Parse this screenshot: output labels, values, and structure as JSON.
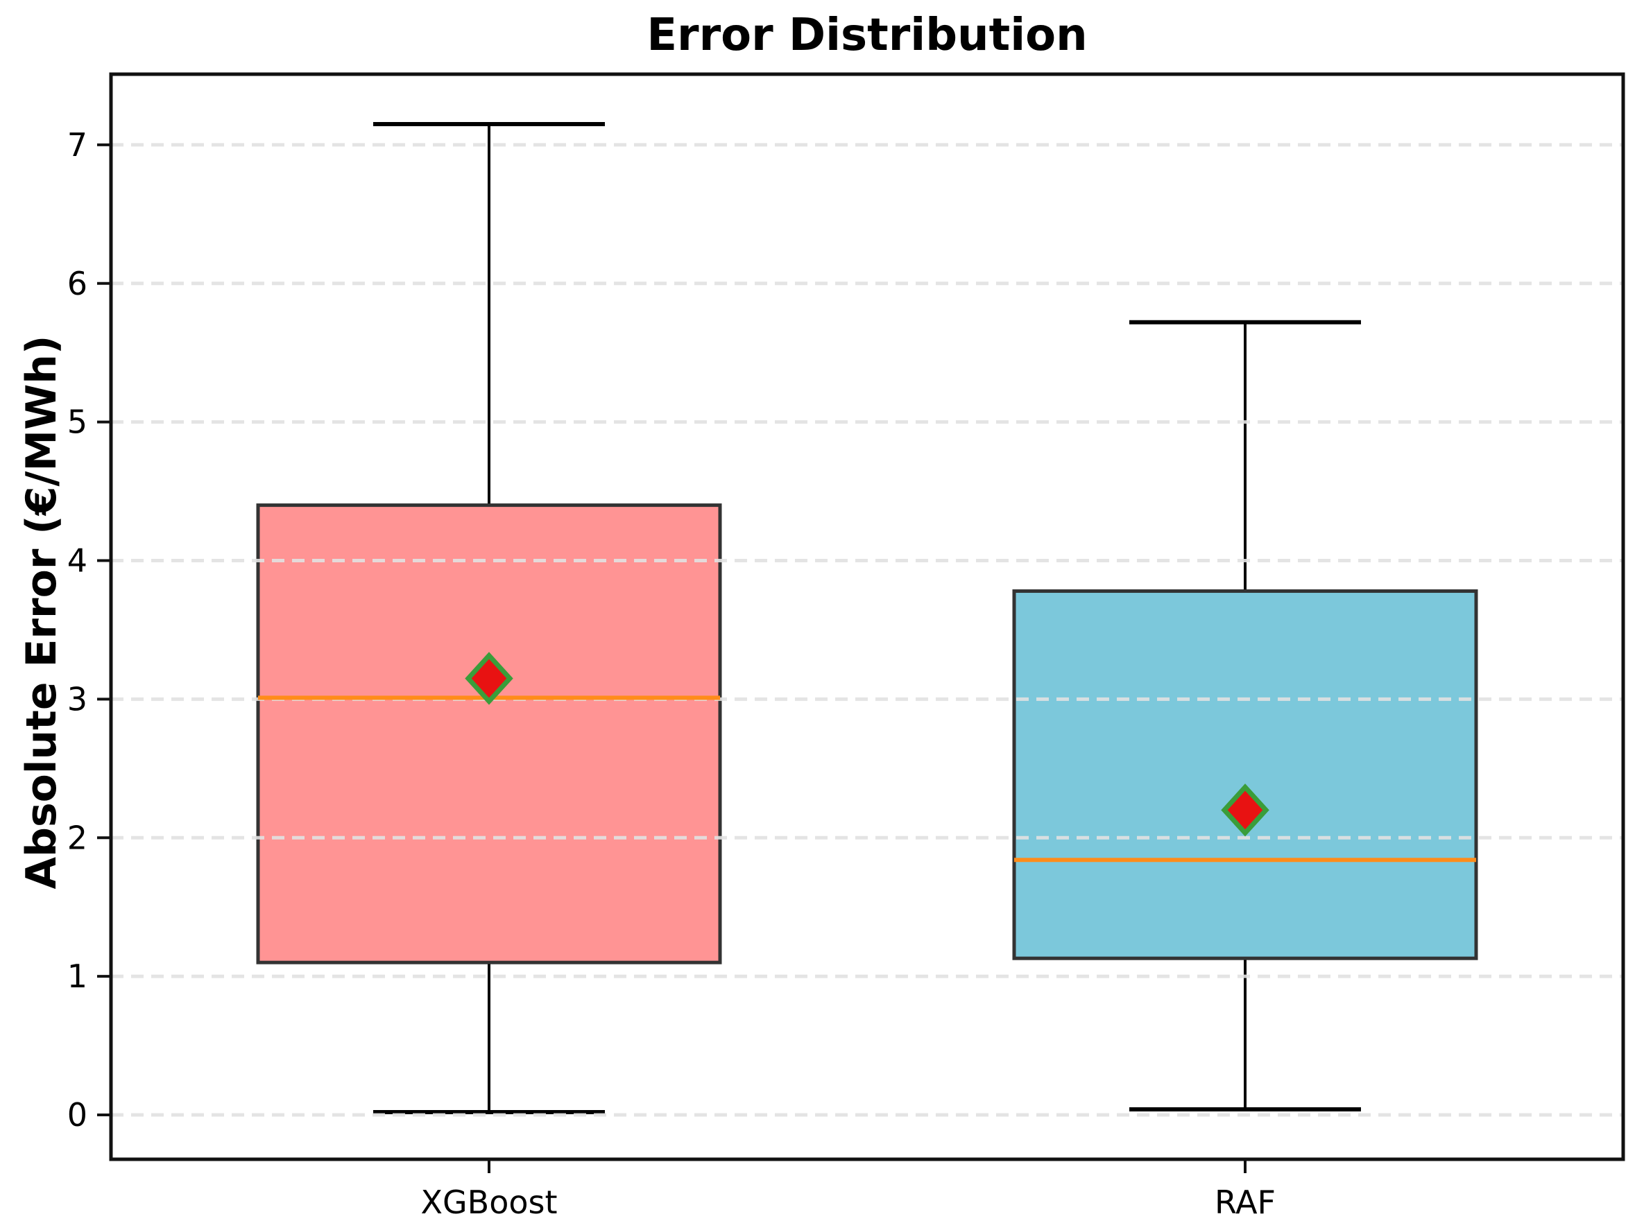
{
  "chart_data": {
    "type": "box",
    "title": "Error Distribution",
    "xlabel": "",
    "ylabel": "Absolute Error (€/MWh)",
    "categories": [
      "XGBoost",
      "RAF"
    ],
    "yticks": [
      0,
      1,
      2,
      3,
      4,
      5,
      6,
      7
    ],
    "ylim": [
      -0.32,
      7.51
    ],
    "grid": {
      "axis": "y",
      "style": "dashed",
      "color": "#e2e2e2",
      "drawn_above_boxes": true
    },
    "legend": "none",
    "series": [
      {
        "name": "XGBoost",
        "whisker_low": 0.02,
        "q1": 1.1,
        "median": 3.01,
        "mean": 3.15,
        "q3": 4.4,
        "whisker_high": 7.15,
        "box_fill": "#ff9494"
      },
      {
        "name": "RAF",
        "whisker_low": 0.04,
        "q1": 1.13,
        "median": 1.84,
        "mean": 2.2,
        "q3": 3.78,
        "whisker_high": 5.72,
        "box_fill": "#7cc8db"
      }
    ],
    "style_colors": {
      "box_edge": "#333333",
      "whisker": "#000000",
      "median_line": "#ff8c1a",
      "mean_marker_fill": "#e81212",
      "mean_marker_edge": "#3a9d3a",
      "spine": "#111111",
      "gridline": "#e2e2e2"
    }
  }
}
